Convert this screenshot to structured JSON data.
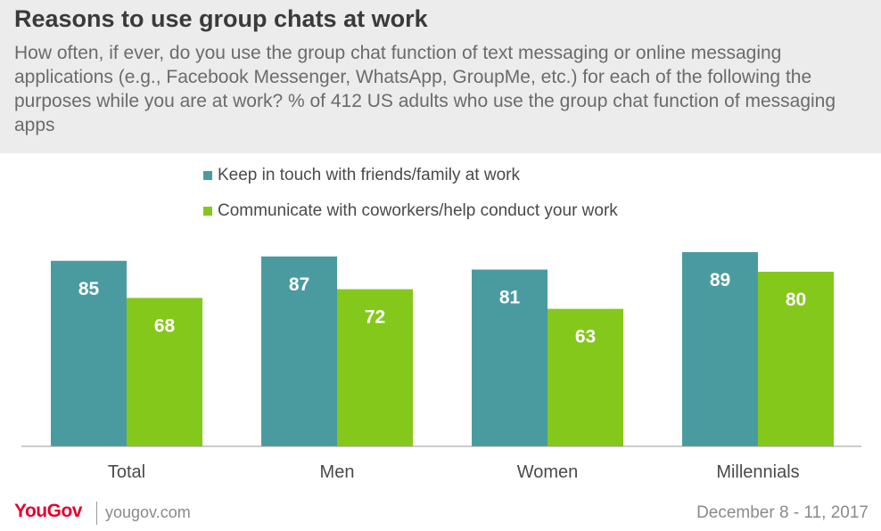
{
  "header": {
    "title": "Reasons to use group chats at work",
    "subtitle": "How often, if ever, do you use the group chat function of text messaging or online messaging applications (e.g., Facebook Messenger, WhatsApp, GroupMe, etc.) for each of the following the purposes while you are at work? % of 412 US adults who use the group chat function of messaging apps"
  },
  "colors": {
    "series1": "#4a9b9f",
    "series2": "#84c81b",
    "header_bg": "#ececec",
    "brand": "#e3002b"
  },
  "chart_data": {
    "type": "bar",
    "title": "Reasons to use group chats at work",
    "categories": [
      "Total",
      "Men",
      "Women",
      "Millennials"
    ],
    "series": [
      {
        "name": "Keep in touch with friends/family at work",
        "values": [
          85,
          87,
          81,
          89
        ]
      },
      {
        "name": "Communicate with coworkers/help conduct your work",
        "values": [
          68,
          72,
          63,
          80
        ]
      }
    ],
    "ylim": [
      0,
      100
    ],
    "grid": false,
    "legend": "top"
  },
  "footer": {
    "logo": "YouGov",
    "url": "yougov.com",
    "date": "December 8 - 11, 2017"
  }
}
